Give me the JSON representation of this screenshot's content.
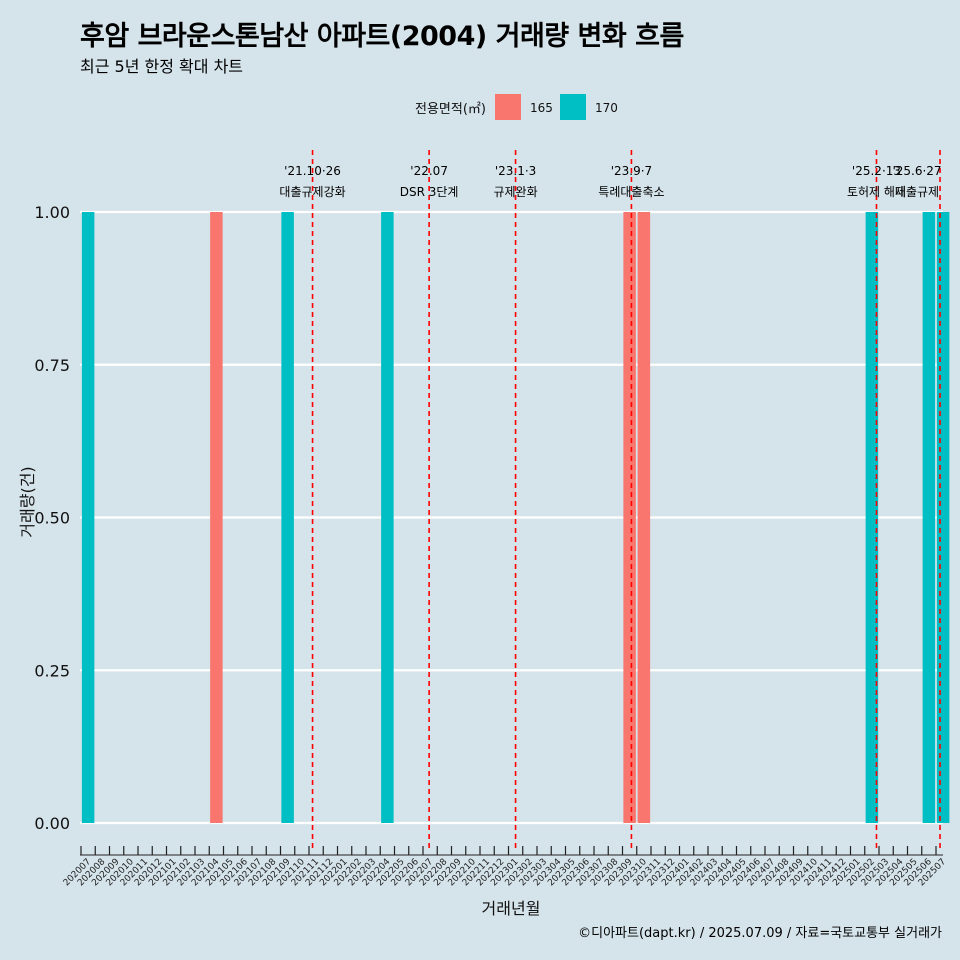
{
  "title": "후암 브라운스톤남산 아파트(2004) 거래량 변화 흐름",
  "subtitle": "최근 5년 한정 확대 차트",
  "caption": "©디아파트(dapt.kr) / 2025.07.09 / 자료=국토교통부 실거래가",
  "colors": {
    "background": "#d5e3ea",
    "grid": "#ffffff",
    "event_line": "#ff0000"
  },
  "chart_data": {
    "type": "bar",
    "title": "후암 브라운스톤남산 아파트(2004) 거래량 변화 흐름",
    "xlabel": "거래년월",
    "ylabel": "거래량(건)",
    "ylim": [
      0,
      1
    ],
    "y_ticks": [
      "0.00",
      "0.25",
      "0.50",
      "0.75",
      "1.00"
    ],
    "grid": true,
    "legend": {
      "title": "전용면적(㎡)",
      "placement": "top",
      "entries": [
        {
          "name": "165",
          "color": "#f8766d"
        },
        {
          "name": "170",
          "color": "#00bfc4"
        }
      ]
    },
    "categories": [
      "202007",
      "202008",
      "202009",
      "202010",
      "202011",
      "202012",
      "202101",
      "202102",
      "202103",
      "202104",
      "202105",
      "202106",
      "202107",
      "202108",
      "202109",
      "202110",
      "202111",
      "202112",
      "202201",
      "202202",
      "202203",
      "202204",
      "202205",
      "202206",
      "202207",
      "202208",
      "202209",
      "202210",
      "202211",
      "202212",
      "202301",
      "202302",
      "202303",
      "202304",
      "202305",
      "202306",
      "202307",
      "202308",
      "202309",
      "202310",
      "202311",
      "202312",
      "202401",
      "202402",
      "202403",
      "202404",
      "202405",
      "202406",
      "202407",
      "202408",
      "202409",
      "202410",
      "202411",
      "202412",
      "202501",
      "202502",
      "202503",
      "202504",
      "202505",
      "202506",
      "202507"
    ],
    "series": [
      {
        "name": "165",
        "color": "#f8766d",
        "points": [
          {
            "x": "202104",
            "y": 1
          },
          {
            "x": "202309",
            "y": 1
          },
          {
            "x": "202310",
            "y": 1
          }
        ]
      },
      {
        "name": "170",
        "color": "#00bfc4",
        "points": [
          {
            "x": "202007",
            "y": 1
          },
          {
            "x": "202109",
            "y": 1
          },
          {
            "x": "202204",
            "y": 1
          },
          {
            "x": "202502",
            "y": 1
          },
          {
            "x": "202506",
            "y": 1
          },
          {
            "x": "202507",
            "y": 1
          }
        ]
      }
    ],
    "events": [
      {
        "date": "2021-10-26",
        "date_label": "'21.10·26",
        "label": "대출규제강화"
      },
      {
        "date": "2022-07-01",
        "date_label": "'22.07",
        "label": "DSR 3단계"
      },
      {
        "date": "2023-01-03",
        "date_label": "'23.1·3",
        "label": "규제완화"
      },
      {
        "date": "2023-09-07",
        "date_label": "'23.9·7",
        "label": "특례대출축소"
      },
      {
        "date": "2025-02-13",
        "date_label": "'25.2·13",
        "label": "토허제 해제"
      },
      {
        "date": "2025-06-27",
        "date_label": "'25.6·27",
        "label": "대출규제"
      }
    ]
  }
}
